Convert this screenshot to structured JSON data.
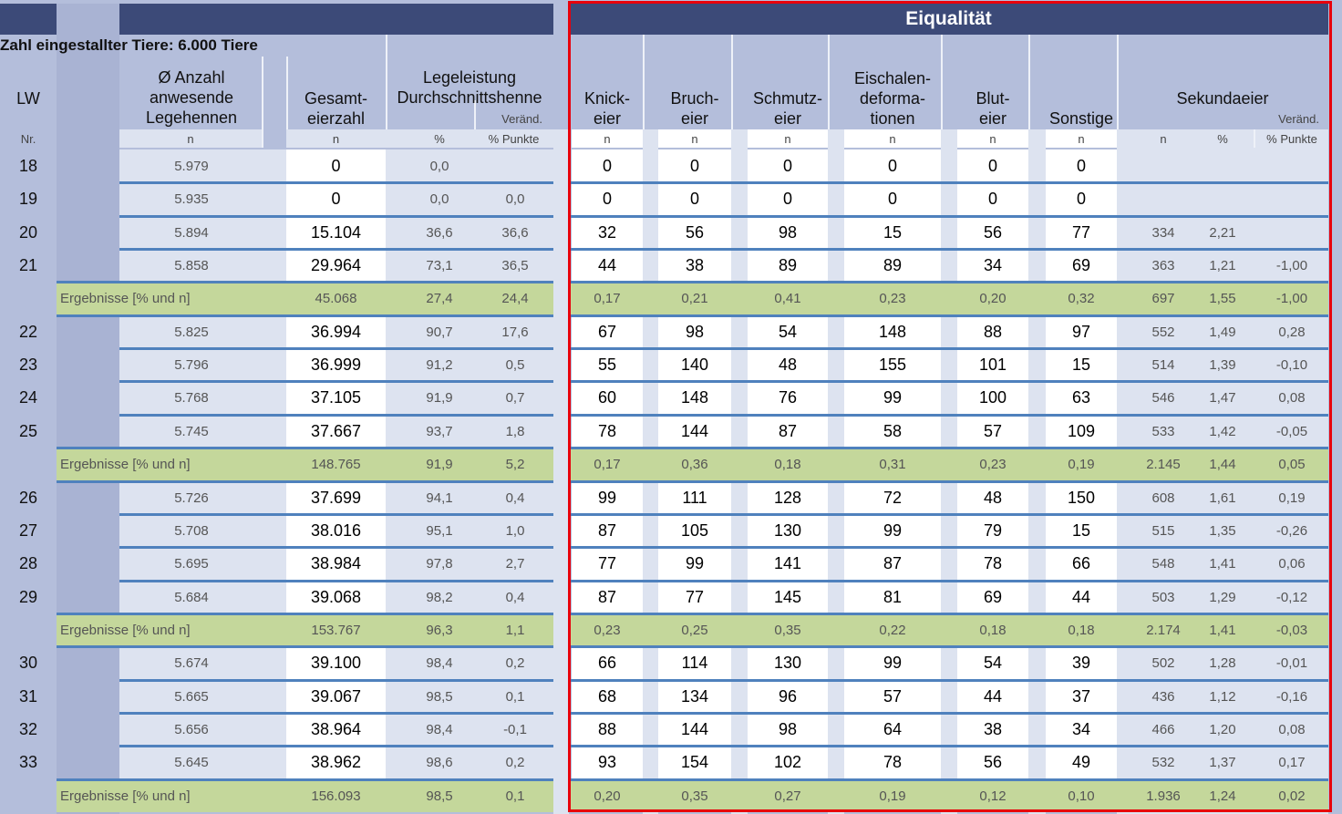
{
  "title_bar": {
    "eiqualitaet": "Eiqualität"
  },
  "info": "Zahl eingestallter Tiere: 6.000 Tiere",
  "headers": {
    "lw": "LW",
    "nr": "Nr.",
    "anzahl": [
      "Ø Anzahl",
      "anwesende",
      "Legehennen"
    ],
    "anzahl_unit": "n",
    "gesamt": [
      "Gesamt-",
      "eierzahl"
    ],
    "gesamt_unit": "n",
    "legeleistung": [
      "Legeleistung",
      "Durchschnittshenne"
    ],
    "legeleistung_veraend": "Veränd.",
    "legeleistung_unit_pct": "%",
    "legeleistung_unit_punkte": "% Punkte",
    "knick": [
      "Knick-",
      "eier"
    ],
    "bruch": [
      "Bruch-",
      "eier"
    ],
    "schmutz": [
      "Schmutz-",
      "eier"
    ],
    "eischalen": [
      "Eischalen-",
      "deforma-",
      "tionen"
    ],
    "blut": [
      "Blut-",
      "eier"
    ],
    "sonstige": [
      "Sonstige"
    ],
    "sekundaeier": "Sekundaeier",
    "sek_veraend": "Veränd.",
    "n": "n",
    "pct": "%",
    "punkte": "% Punkte"
  },
  "rows": [
    {
      "type": "week",
      "lw": "18",
      "anzahl": "5.979",
      "gesamt": "0",
      "pct": "0,0",
      "punkte": "",
      "q": [
        "0",
        "0",
        "0",
        "0",
        "0",
        "0"
      ],
      "sek": [
        "",
        "",
        ""
      ]
    },
    {
      "type": "week",
      "lw": "19",
      "anzahl": "5.935",
      "gesamt": "0",
      "pct": "0,0",
      "punkte": "0,0",
      "q": [
        "0",
        "0",
        "0",
        "0",
        "0",
        "0"
      ],
      "sek": [
        "",
        "",
        ""
      ]
    },
    {
      "type": "week",
      "lw": "20",
      "anzahl": "5.894",
      "gesamt": "15.104",
      "pct": "36,6",
      "punkte": "36,6",
      "q": [
        "32",
        "56",
        "98",
        "15",
        "56",
        "77"
      ],
      "sek": [
        "334",
        "2,21",
        ""
      ]
    },
    {
      "type": "week",
      "lw": "21",
      "anzahl": "5.858",
      "gesamt": "29.964",
      "pct": "73,1",
      "punkte": "36,5",
      "q": [
        "44",
        "38",
        "89",
        "89",
        "34",
        "69"
      ],
      "sek": [
        "363",
        "1,21",
        "-1,00"
      ]
    },
    {
      "type": "sum",
      "label": "Ergebnisse [% und n]",
      "gesamt": "45.068",
      "pct": "27,4",
      "punkte": "24,4",
      "q": [
        "0,17",
        "0,21",
        "0,41",
        "0,23",
        "0,20",
        "0,32"
      ],
      "sek": [
        "697",
        "1,55",
        "-1,00"
      ]
    },
    {
      "type": "week",
      "lw": "22",
      "anzahl": "5.825",
      "gesamt": "36.994",
      "pct": "90,7",
      "punkte": "17,6",
      "q": [
        "67",
        "98",
        "54",
        "148",
        "88",
        "97"
      ],
      "sek": [
        "552",
        "1,49",
        "0,28"
      ]
    },
    {
      "type": "week",
      "lw": "23",
      "anzahl": "5.796",
      "gesamt": "36.999",
      "pct": "91,2",
      "punkte": "0,5",
      "q": [
        "55",
        "140",
        "48",
        "155",
        "101",
        "15"
      ],
      "sek": [
        "514",
        "1,39",
        "-0,10"
      ]
    },
    {
      "type": "week",
      "lw": "24",
      "anzahl": "5.768",
      "gesamt": "37.105",
      "pct": "91,9",
      "punkte": "0,7",
      "q": [
        "60",
        "148",
        "76",
        "99",
        "100",
        "63"
      ],
      "sek": [
        "546",
        "1,47",
        "0,08"
      ]
    },
    {
      "type": "week",
      "lw": "25",
      "anzahl": "5.745",
      "gesamt": "37.667",
      "pct": "93,7",
      "punkte": "1,8",
      "q": [
        "78",
        "144",
        "87",
        "58",
        "57",
        "109"
      ],
      "sek": [
        "533",
        "1,42",
        "-0,05"
      ]
    },
    {
      "type": "sum",
      "label": "Ergebnisse [% und n]",
      "gesamt": "148.765",
      "pct": "91,9",
      "punkte": "5,2",
      "q": [
        "0,17",
        "0,36",
        "0,18",
        "0,31",
        "0,23",
        "0,19"
      ],
      "sek": [
        "2.145",
        "1,44",
        "0,05"
      ]
    },
    {
      "type": "week",
      "lw": "26",
      "anzahl": "5.726",
      "gesamt": "37.699",
      "pct": "94,1",
      "punkte": "0,4",
      "q": [
        "99",
        "111",
        "128",
        "72",
        "48",
        "150"
      ],
      "sek": [
        "608",
        "1,61",
        "0,19"
      ]
    },
    {
      "type": "week",
      "lw": "27",
      "anzahl": "5.708",
      "gesamt": "38.016",
      "pct": "95,1",
      "punkte": "1,0",
      "q": [
        "87",
        "105",
        "130",
        "99",
        "79",
        "15"
      ],
      "sek": [
        "515",
        "1,35",
        "-0,26"
      ]
    },
    {
      "type": "week",
      "lw": "28",
      "anzahl": "5.695",
      "gesamt": "38.984",
      "pct": "97,8",
      "punkte": "2,7",
      "q": [
        "77",
        "99",
        "141",
        "87",
        "78",
        "66"
      ],
      "sek": [
        "548",
        "1,41",
        "0,06"
      ]
    },
    {
      "type": "week",
      "lw": "29",
      "anzahl": "5.684",
      "gesamt": "39.068",
      "pct": "98,2",
      "punkte": "0,4",
      "q": [
        "87",
        "77",
        "145",
        "81",
        "69",
        "44"
      ],
      "sek": [
        "503",
        "1,29",
        "-0,12"
      ]
    },
    {
      "type": "sum",
      "label": "Ergebnisse [% und n]",
      "gesamt": "153.767",
      "pct": "96,3",
      "punkte": "1,1",
      "q": [
        "0,23",
        "0,25",
        "0,35",
        "0,22",
        "0,18",
        "0,18"
      ],
      "sek": [
        "2.174",
        "1,41",
        "-0,03"
      ]
    },
    {
      "type": "week",
      "lw": "30",
      "anzahl": "5.674",
      "gesamt": "39.100",
      "pct": "98,4",
      "punkte": "0,2",
      "q": [
        "66",
        "114",
        "130",
        "99",
        "54",
        "39"
      ],
      "sek": [
        "502",
        "1,28",
        "-0,01"
      ]
    },
    {
      "type": "week",
      "lw": "31",
      "anzahl": "5.665",
      "gesamt": "39.067",
      "pct": "98,5",
      "punkte": "0,1",
      "q": [
        "68",
        "134",
        "96",
        "57",
        "44",
        "37"
      ],
      "sek": [
        "436",
        "1,12",
        "-0,16"
      ]
    },
    {
      "type": "week",
      "lw": "32",
      "anzahl": "5.656",
      "gesamt": "38.964",
      "pct": "98,4",
      "punkte": "-0,1",
      "q": [
        "88",
        "144",
        "98",
        "64",
        "38",
        "34"
      ],
      "sek": [
        "466",
        "1,20",
        "0,08"
      ]
    },
    {
      "type": "week",
      "lw": "33",
      "anzahl": "5.645",
      "gesamt": "38.962",
      "pct": "98,6",
      "punkte": "0,2",
      "q": [
        "93",
        "154",
        "102",
        "78",
        "56",
        "49"
      ],
      "sek": [
        "532",
        "1,37",
        "0,17"
      ]
    },
    {
      "type": "sum",
      "label": "Ergebnisse [% und n]",
      "gesamt": "156.093",
      "pct": "98,5",
      "punkte": "0,1",
      "q": [
        "0,20",
        "0,35",
        "0,27",
        "0,19",
        "0,12",
        "0,10"
      ],
      "sek": [
        "1.936",
        "1,24",
        "0,02"
      ]
    }
  ],
  "colors": {
    "header_dark": "#3c4a78",
    "summary_green": "#c4d79b",
    "separator_blue": "#4f81bd",
    "highlight_red": "#e8000b"
  }
}
